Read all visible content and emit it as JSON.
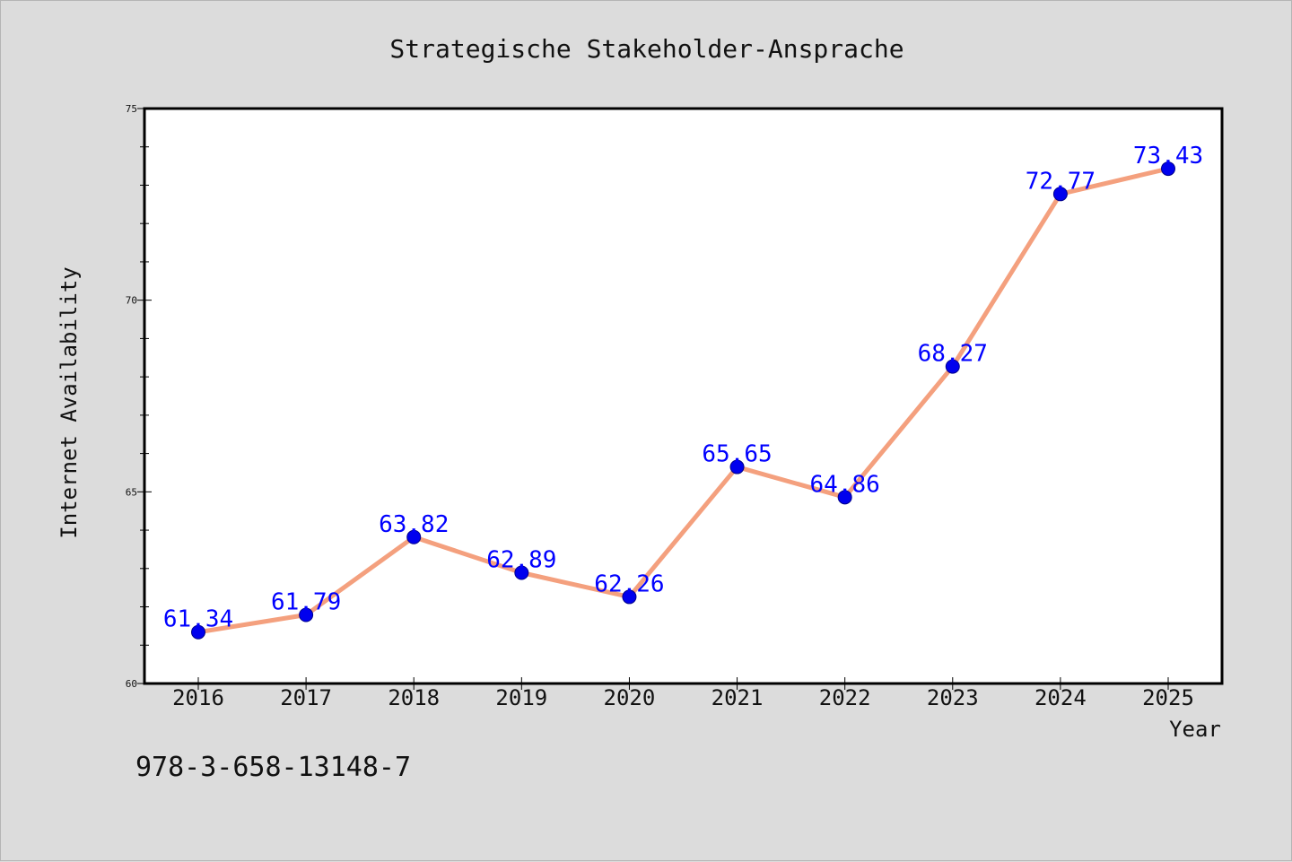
{
  "chart_data": {
    "type": "line",
    "title": "Strategische Stakeholder-Ansprache",
    "xlabel": "Year",
    "ylabel": "Internet Availability",
    "x": [
      "2016",
      "2017",
      "2018",
      "2019",
      "2020",
      "2021",
      "2022",
      "2023",
      "2024",
      "2025"
    ],
    "series": [
      {
        "values": [
          61.34,
          61.79,
          63.82,
          62.89,
          62.26,
          65.65,
          64.86,
          68.27,
          72.77,
          73.43
        ],
        "labels": [
          "61.34",
          "61.79",
          "63.82",
          "62.89",
          "62.26",
          "65.65",
          "64.86",
          "68.27",
          "72.77",
          "73.43"
        ],
        "line_color": "#f4a07e",
        "marker_color": "#0000ee"
      }
    ],
    "ylim": [
      60,
      75
    ],
    "yticks": [
      "60",
      "65",
      "70",
      "75"
    ],
    "grid": false,
    "legend": "none"
  },
  "footer_text": "978-3-658-13148-7",
  "colors": {
    "background": "#dcdcdc",
    "plot_background": "#ffffff",
    "label_color": "#0000ff"
  }
}
